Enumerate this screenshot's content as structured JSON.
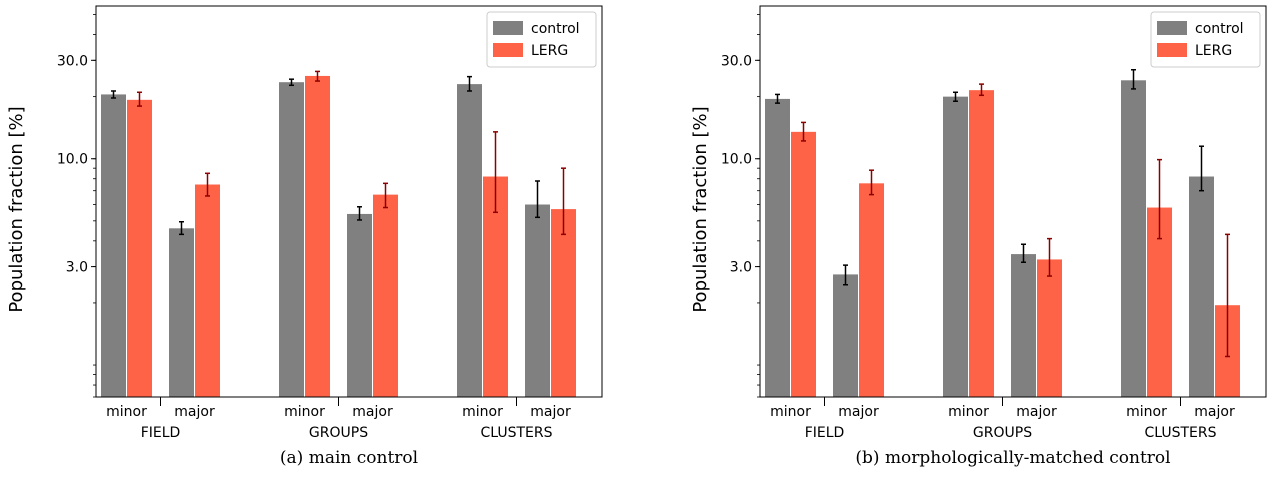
{
  "chart_data": [
    {
      "type": "bar",
      "caption": "(a) main control",
      "ylabel": "Population fraction [%]",
      "yscale": "log",
      "ylim": [
        0.7,
        55
      ],
      "yticks": [
        {
          "value": 3.0,
          "label": "3.0"
        },
        {
          "value": 10.0,
          "label": "10.0"
        },
        {
          "value": 30.0,
          "label": "30.0"
        }
      ],
      "groups": [
        "FIELD",
        "GROUPS",
        "CLUSTERS"
      ],
      "subcategories": [
        "minor",
        "major"
      ],
      "legend": {
        "position": "top-right",
        "entries": [
          "control",
          "LERG"
        ]
      },
      "series": [
        {
          "name": "control",
          "color": "#808080",
          "errcolor": "#000000",
          "values": [
            20.5,
            4.6,
            23.5,
            5.4,
            23.0,
            6.0
          ],
          "err_low": [
            19.7,
            4.3,
            22.7,
            5.05,
            21.3,
            5.2
          ],
          "err_high": [
            21.3,
            4.95,
            24.3,
            5.85,
            25.0,
            7.8
          ]
        },
        {
          "name": "LERG",
          "color": "#ff6347",
          "errcolor": "#8b0000",
          "values": [
            19.3,
            7.5,
            25.2,
            6.7,
            8.2,
            5.7
          ],
          "err_low": [
            18.0,
            6.6,
            23.8,
            5.8,
            5.5,
            4.3
          ],
          "err_high": [
            21.0,
            8.5,
            26.5,
            7.6,
            13.5,
            9.0
          ]
        }
      ]
    },
    {
      "type": "bar",
      "caption": "(b) morphologically-matched control",
      "ylabel": "Population fraction [%]",
      "yscale": "log",
      "ylim": [
        0.7,
        55
      ],
      "yticks": [
        {
          "value": 3.0,
          "label": "3.0"
        },
        {
          "value": 10.0,
          "label": "10.0"
        },
        {
          "value": 30.0,
          "label": "30.0"
        }
      ],
      "groups": [
        "FIELD",
        "GROUPS",
        "CLUSTERS"
      ],
      "subcategories": [
        "minor",
        "major"
      ],
      "legend": {
        "position": "top-right",
        "entries": [
          "control",
          "LERG"
        ]
      },
      "series": [
        {
          "name": "control",
          "color": "#808080",
          "errcolor": "#000000",
          "values": [
            19.5,
            2.75,
            20.0,
            3.45,
            24.0,
            8.2
          ],
          "err_low": [
            18.6,
            2.45,
            19.0,
            3.15,
            21.8,
            7.0
          ],
          "err_high": [
            20.5,
            3.05,
            21.0,
            3.85,
            27.0,
            11.5
          ]
        },
        {
          "name": "LERG",
          "color": "#ff6347",
          "errcolor": "#8b0000",
          "values": [
            13.5,
            7.6,
            21.5,
            3.25,
            5.8,
            1.95
          ],
          "err_low": [
            12.2,
            6.7,
            20.3,
            2.7,
            4.1,
            1.1
          ],
          "err_high": [
            15.0,
            8.8,
            23.0,
            4.1,
            9.9,
            4.3
          ]
        }
      ]
    }
  ]
}
